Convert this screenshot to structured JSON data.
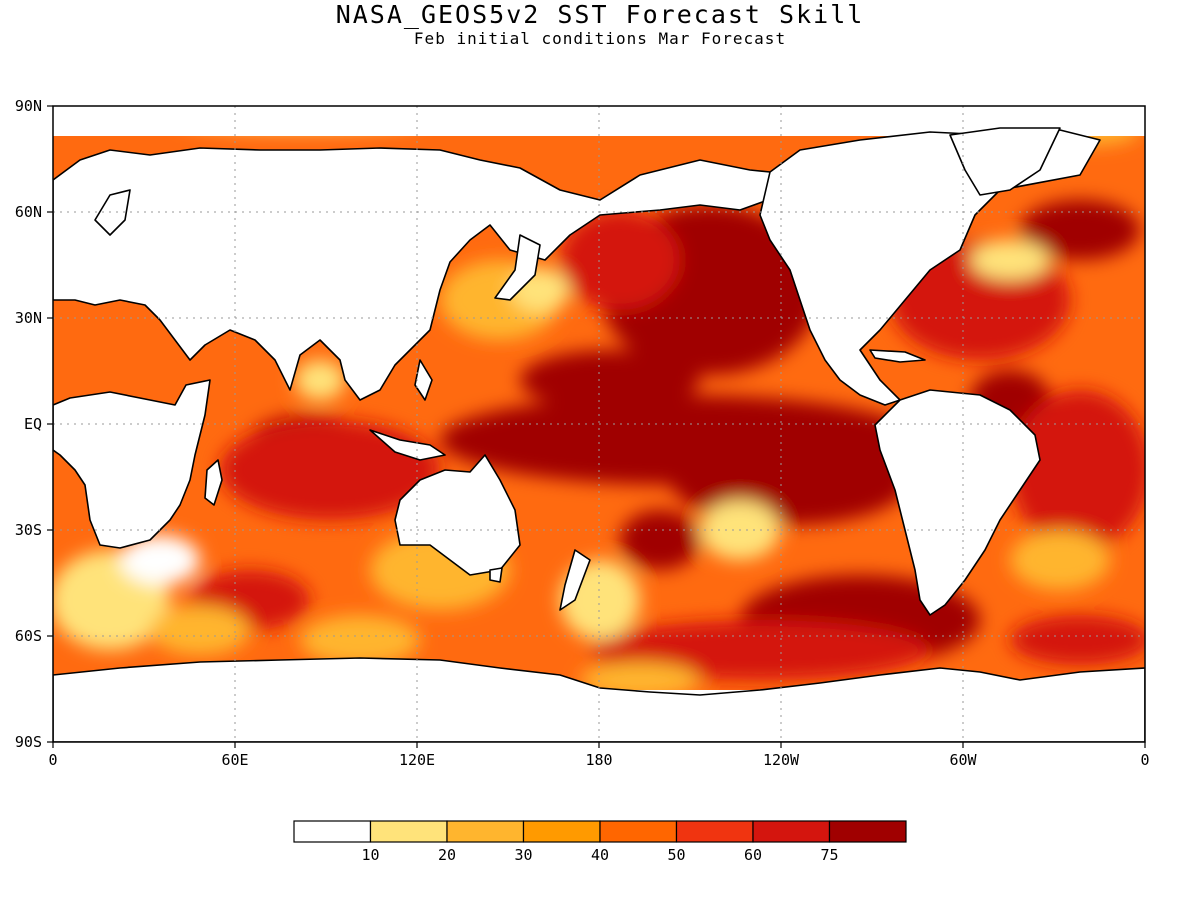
{
  "title": "NASA_GEOS5v2 SST Forecast Skill",
  "subtitle": "Feb initial conditions  Mar Forecast",
  "lat_ticks": [
    "90N",
    "60N",
    "30N",
    "EQ",
    "30S",
    "60S",
    "90S"
  ],
  "lon_ticks": [
    "0",
    "60E",
    "120E",
    "180",
    "120W",
    "60W",
    "0"
  ],
  "colorbar": {
    "labels": [
      "10",
      "20",
      "30",
      "40",
      "50",
      "60",
      "75"
    ],
    "colors": [
      "#ffffff",
      "#ffe37a",
      "#ffb52e",
      "#ff9a00",
      "#ff6600",
      "#f03410",
      "#d4150e",
      "#a00000"
    ]
  },
  "colors": {
    "land": "#ffffff",
    "coast": "#000000",
    "grid": "#9a9a9a",
    "frame": "#000000"
  }
}
